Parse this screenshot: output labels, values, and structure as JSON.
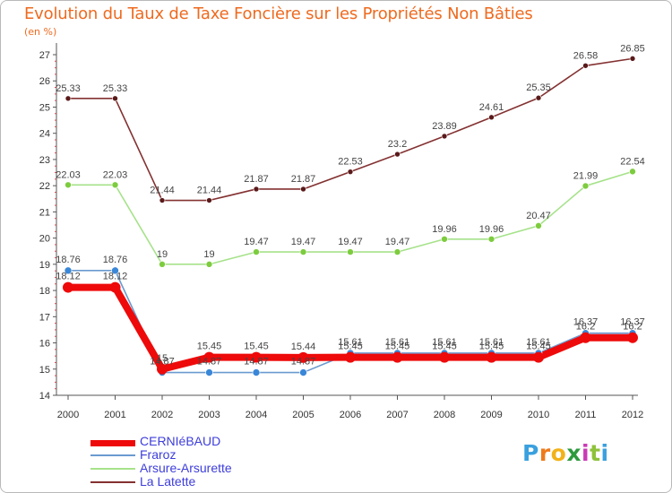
{
  "chart_data": {
    "type": "line",
    "title": "Evolution du Taux de Taxe Foncière sur les Propriétés Non Bâties",
    "ylabel": "(en %)",
    "xlabel": "",
    "categories": [
      "2000",
      "2001",
      "2002",
      "2003",
      "2004",
      "2005",
      "2006",
      "2007",
      "2008",
      "2009",
      "2010",
      "2011",
      "2012"
    ],
    "ylim": [
      14,
      27
    ],
    "yticks": [
      14,
      15,
      16,
      17,
      18,
      19,
      20,
      21,
      22,
      23,
      24,
      25,
      26,
      27
    ],
    "grid": false,
    "legend_position": "bottom-left",
    "series": [
      {
        "name": "La Latette",
        "color": "#843131",
        "marker": "#5a1a1a",
        "values": [
          25.33,
          25.33,
          21.44,
          21.44,
          21.87,
          21.87,
          22.53,
          23.2,
          23.89,
          24.61,
          25.35,
          26.58,
          26.85
        ],
        "labels": [
          "25.33",
          "25.33",
          "21.44",
          "21.44",
          "21.87",
          "21.87",
          "22.53",
          "23.2",
          "23.89",
          "24.61",
          "25.35",
          "26.58",
          "26.85"
        ]
      },
      {
        "name": "Arsure-Arsurette",
        "color": "#a6e28a",
        "marker": "#7dcc3e",
        "values": [
          22.03,
          22.03,
          19,
          19,
          19.47,
          19.47,
          19.47,
          19.47,
          19.96,
          19.96,
          20.47,
          21.99,
          22.54
        ],
        "labels": [
          "22.03",
          "22.03",
          "19",
          "19",
          "19.47",
          "19.47",
          "19.47",
          "19.47",
          "19.96",
          "19.96",
          "20.47",
          "21.99",
          "22.54"
        ]
      },
      {
        "name": "Fraroz",
        "color": "#6a9ad0",
        "marker": "#3a87d8",
        "values": [
          18.76,
          18.76,
          14.87,
          14.87,
          14.87,
          14.87,
          15.61,
          15.61,
          15.61,
          15.61,
          15.61,
          16.37,
          16.37
        ],
        "labels": [
          "18.76",
          "18.76",
          "14.87",
          "14.87",
          "14.87",
          "14.87",
          "15.61",
          "15.61",
          "15.61",
          "15.61",
          "15.61",
          "16.37",
          "16.37"
        ]
      },
      {
        "name": "CERNIéBAUD",
        "color": "#ee0a0a",
        "marker": "#ee0a0a",
        "values": [
          18.12,
          18.12,
          15,
          15.45,
          15.45,
          15.44,
          15.45,
          15.45,
          15.45,
          15.45,
          15.45,
          16.2,
          16.2
        ],
        "labels": [
          "18.12",
          "18.12",
          "15",
          "15.45",
          "15.45",
          "15.44",
          "15.45",
          "15.45",
          "15.45",
          "15.45",
          "15.45",
          "16.2",
          "16.2"
        ]
      }
    ]
  },
  "legend": {
    "items": [
      {
        "name": "CERNIéBAUD",
        "color": "#ee0a0a"
      },
      {
        "name": "Fraroz",
        "color": "#6a9ad0"
      },
      {
        "name": "Arsure-Arsurette",
        "color": "#a6e28a"
      },
      {
        "name": "La Latette",
        "color": "#843131"
      }
    ]
  },
  "brand": {
    "text": "Proxiti",
    "letters": [
      {
        "ch": "P",
        "color": "#3aa0de"
      },
      {
        "ch": "r",
        "color": "#ee7a1a"
      },
      {
        "ch": "o",
        "color": "#f2b21a"
      },
      {
        "ch": "x",
        "color": "#2e9a3e"
      },
      {
        "ch": "i",
        "color": "#c93ab5"
      },
      {
        "ch": "t",
        "color": "#8ec23a"
      },
      {
        "ch": "i",
        "color": "#3aa0de"
      }
    ]
  }
}
